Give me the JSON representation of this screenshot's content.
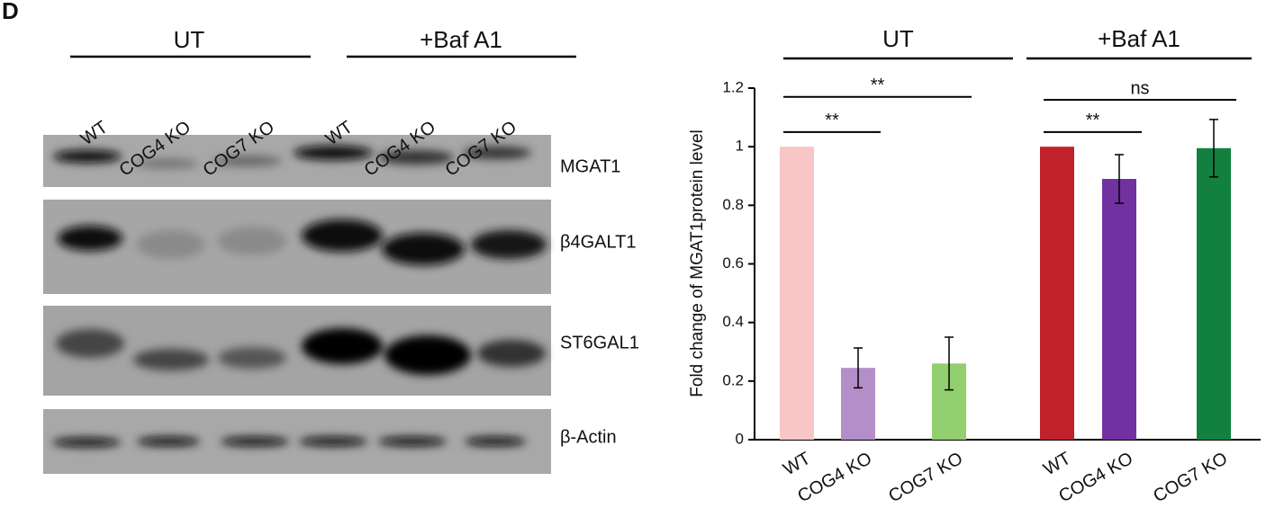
{
  "panel_label": "D",
  "blot": {
    "groups": [
      "UT",
      "+Baf A1"
    ],
    "lanes": [
      "WT",
      "COG4 KO",
      "COG7 KO",
      "WT",
      "COG4 KO",
      "COG7 KO"
    ],
    "bands": [
      "MGAT1",
      "β4GALT1",
      "ST6GAL1",
      "β-Actin"
    ]
  },
  "chart_data": {
    "type": "bar",
    "y_label": "Fold change of MGAT1protein level",
    "group_labels": [
      "UT",
      "+Baf A1"
    ],
    "categories": [
      "WT",
      "COG4 KO",
      "COG7 KO",
      "WT",
      "COG4 KO",
      "COG7 KO"
    ],
    "values": [
      1,
      0.245,
      0.26,
      1,
      0.89,
      0.995
    ],
    "errors": [
      null,
      0.068,
      0.09,
      null,
      0.083,
      0.098
    ],
    "colors": [
      "#f8c6c6",
      "#b48ec9",
      "#93cf6e",
      "#c1212b",
      "#7131a0",
      "#128140"
    ],
    "ylim": [
      0,
      1.2
    ],
    "yticks": [
      0,
      0.2,
      0.4,
      0.6,
      0.8,
      1,
      1.2
    ],
    "annotations": [
      {
        "label": "**",
        "from": 0,
        "to": 1,
        "y": 1.05
      },
      {
        "label": "**",
        "from": 0,
        "to": 2,
        "y": 1.17
      },
      {
        "label": "**",
        "from": 3,
        "to": 4,
        "y": 1.05
      },
      {
        "label": "ns",
        "from": 3,
        "to": 5,
        "y": 1.16
      }
    ]
  }
}
